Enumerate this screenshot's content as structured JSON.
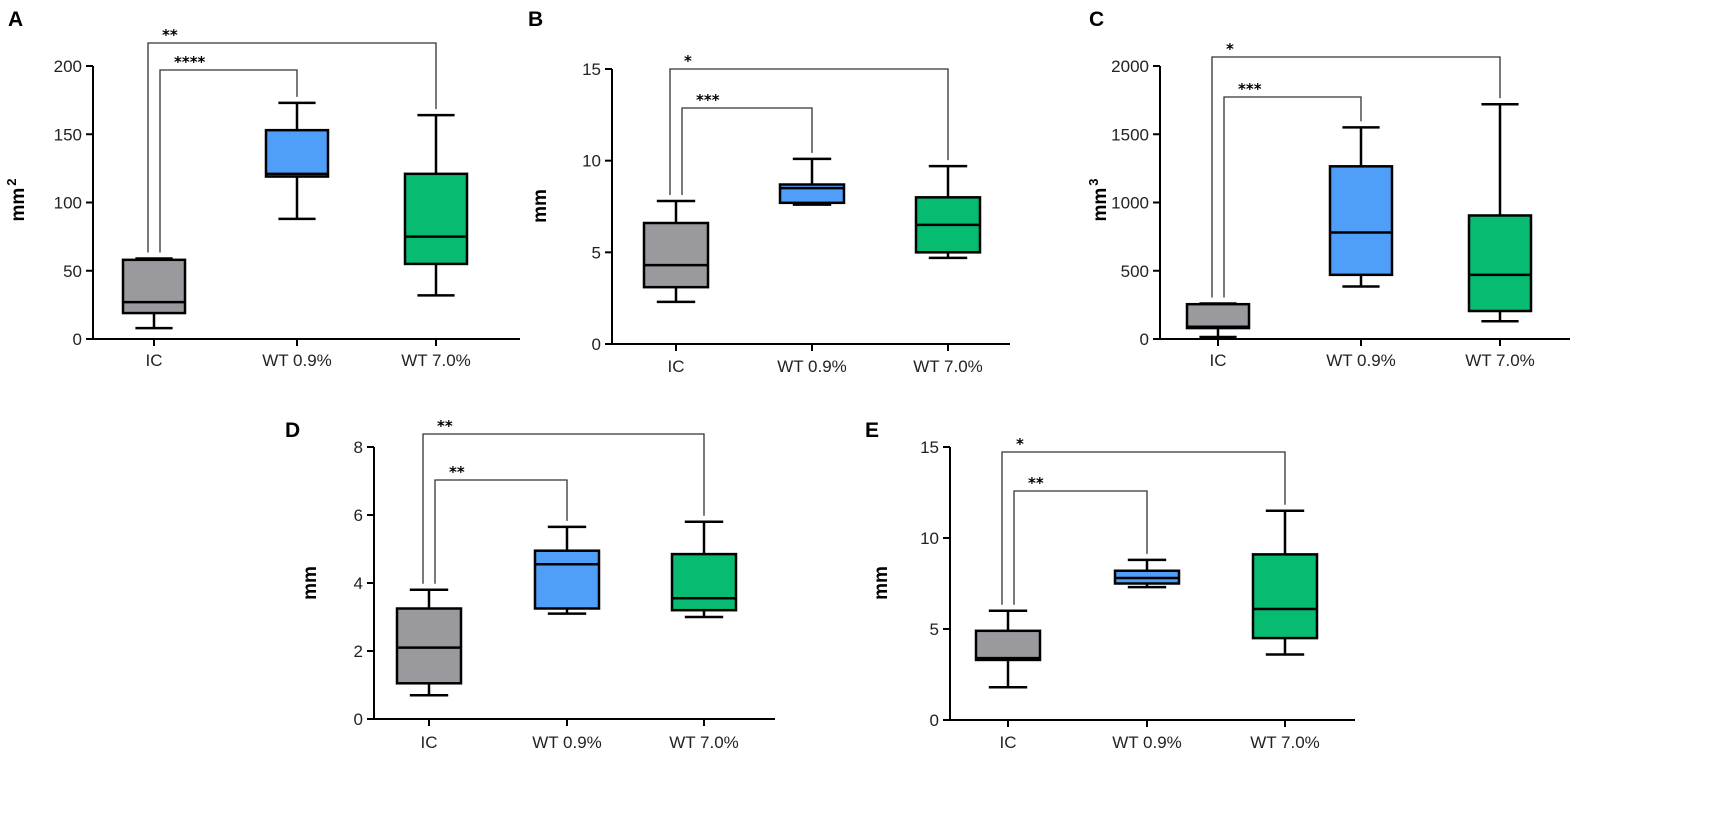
{
  "colors": {
    "IC": "#9a9a9e",
    "WT 0.9%": "#4f9ef8",
    "WT 7.0%": "#07bb70"
  },
  "chart_data": [
    {
      "type": "box",
      "panel": "A",
      "title": "",
      "xlabel": "",
      "ylabel": "mm",
      "ylabel_sup": "2",
      "ylim": [
        0,
        200
      ],
      "yticks": [
        "0",
        "50",
        "100",
        "150",
        "200"
      ],
      "categories": [
        "IC",
        "WT 0.9%",
        "WT 7.0%"
      ],
      "boxes": [
        {
          "min": 8,
          "q1": 19,
          "median": 27,
          "q3": 58,
          "max": 59
        },
        {
          "min": 88,
          "q1": 119,
          "median": 121,
          "q3": 153,
          "max": 173
        },
        {
          "min": 32,
          "q1": 55,
          "median": 75,
          "q3": 121,
          "max": 164
        }
      ],
      "significance": [
        {
          "from": "IC",
          "to": "WT 7.0%",
          "label": "**"
        },
        {
          "from": "IC",
          "to": "WT 0.9%",
          "label": "****"
        }
      ]
    },
    {
      "type": "box",
      "panel": "B",
      "title": "",
      "xlabel": "",
      "ylabel": "mm",
      "ylabel_sup": "",
      "ylim": [
        0,
        15
      ],
      "yticks": [
        "0",
        "5",
        "10",
        "15"
      ],
      "categories": [
        "IC",
        "WT 0.9%",
        "WT 7.0%"
      ],
      "boxes": [
        {
          "min": 2.3,
          "q1": 3.1,
          "median": 4.3,
          "q3": 6.6,
          "max": 7.8
        },
        {
          "min": 7.6,
          "q1": 7.7,
          "median": 8.5,
          "q3": 8.7,
          "max": 10.1
        },
        {
          "min": 4.7,
          "q1": 5.0,
          "median": 6.5,
          "q3": 8.0,
          "max": 9.7
        }
      ],
      "significance": [
        {
          "from": "IC",
          "to": "WT 7.0%",
          "label": "*"
        },
        {
          "from": "IC",
          "to": "WT 0.9%",
          "label": "***"
        }
      ]
    },
    {
      "type": "box",
      "panel": "C",
      "title": "",
      "xlabel": "",
      "ylabel": "mm",
      "ylabel_sup": "3",
      "ylim": [
        0,
        2000
      ],
      "yticks": [
        "0",
        "500",
        "1000",
        "1500",
        "2000"
      ],
      "categories": [
        "IC",
        "WT 0.9%",
        "WT 7.0%"
      ],
      "boxes": [
        {
          "min": 15,
          "q1": 80,
          "median": 90,
          "q3": 255,
          "max": 260
        },
        {
          "min": 385,
          "q1": 470,
          "median": 780,
          "q3": 1265,
          "max": 1550
        },
        {
          "min": 130,
          "q1": 205,
          "median": 470,
          "q3": 905,
          "max": 1720
        }
      ],
      "significance": [
        {
          "from": "IC",
          "to": "WT 7.0%",
          "label": "*"
        },
        {
          "from": "IC",
          "to": "WT 0.9%",
          "label": "***"
        }
      ]
    },
    {
      "type": "box",
      "panel": "D",
      "title": "",
      "xlabel": "",
      "ylabel": "mm",
      "ylabel_sup": "",
      "ylim": [
        0,
        8
      ],
      "yticks": [
        "0",
        "2",
        "4",
        "6",
        "8"
      ],
      "categories": [
        "IC",
        "WT 0.9%",
        "WT 7.0%"
      ],
      "boxes": [
        {
          "min": 0.7,
          "q1": 1.05,
          "median": 2.1,
          "q3": 3.25,
          "max": 3.8
        },
        {
          "min": 3.1,
          "q1": 3.25,
          "median": 4.55,
          "q3": 4.95,
          "max": 5.65
        },
        {
          "min": 3.0,
          "q1": 3.2,
          "median": 3.55,
          "q3": 4.85,
          "max": 5.8
        }
      ],
      "significance": [
        {
          "from": "IC",
          "to": "WT 7.0%",
          "label": "**"
        },
        {
          "from": "IC",
          "to": "WT 0.9%",
          "label": "**"
        }
      ]
    },
    {
      "type": "box",
      "panel": "E",
      "title": "",
      "xlabel": "",
      "ylabel": "mm",
      "ylabel_sup": "",
      "ylim": [
        0,
        15
      ],
      "yticks": [
        "0",
        "5",
        "10",
        "15"
      ],
      "categories": [
        "IC",
        "WT 0.9%",
        "WT 7.0%"
      ],
      "boxes": [
        {
          "min": 1.8,
          "q1": 3.3,
          "median": 3.4,
          "q3": 4.9,
          "max": 6.0
        },
        {
          "min": 7.3,
          "q1": 7.5,
          "median": 7.8,
          "q3": 8.2,
          "max": 8.8
        },
        {
          "min": 3.6,
          "q1": 4.5,
          "median": 6.1,
          "q3": 9.1,
          "max": 11.5
        }
      ],
      "significance": [
        {
          "from": "IC",
          "to": "WT 7.0%",
          "label": "*"
        },
        {
          "from": "IC",
          "to": "WT 0.9%",
          "label": "**"
        }
      ]
    }
  ]
}
